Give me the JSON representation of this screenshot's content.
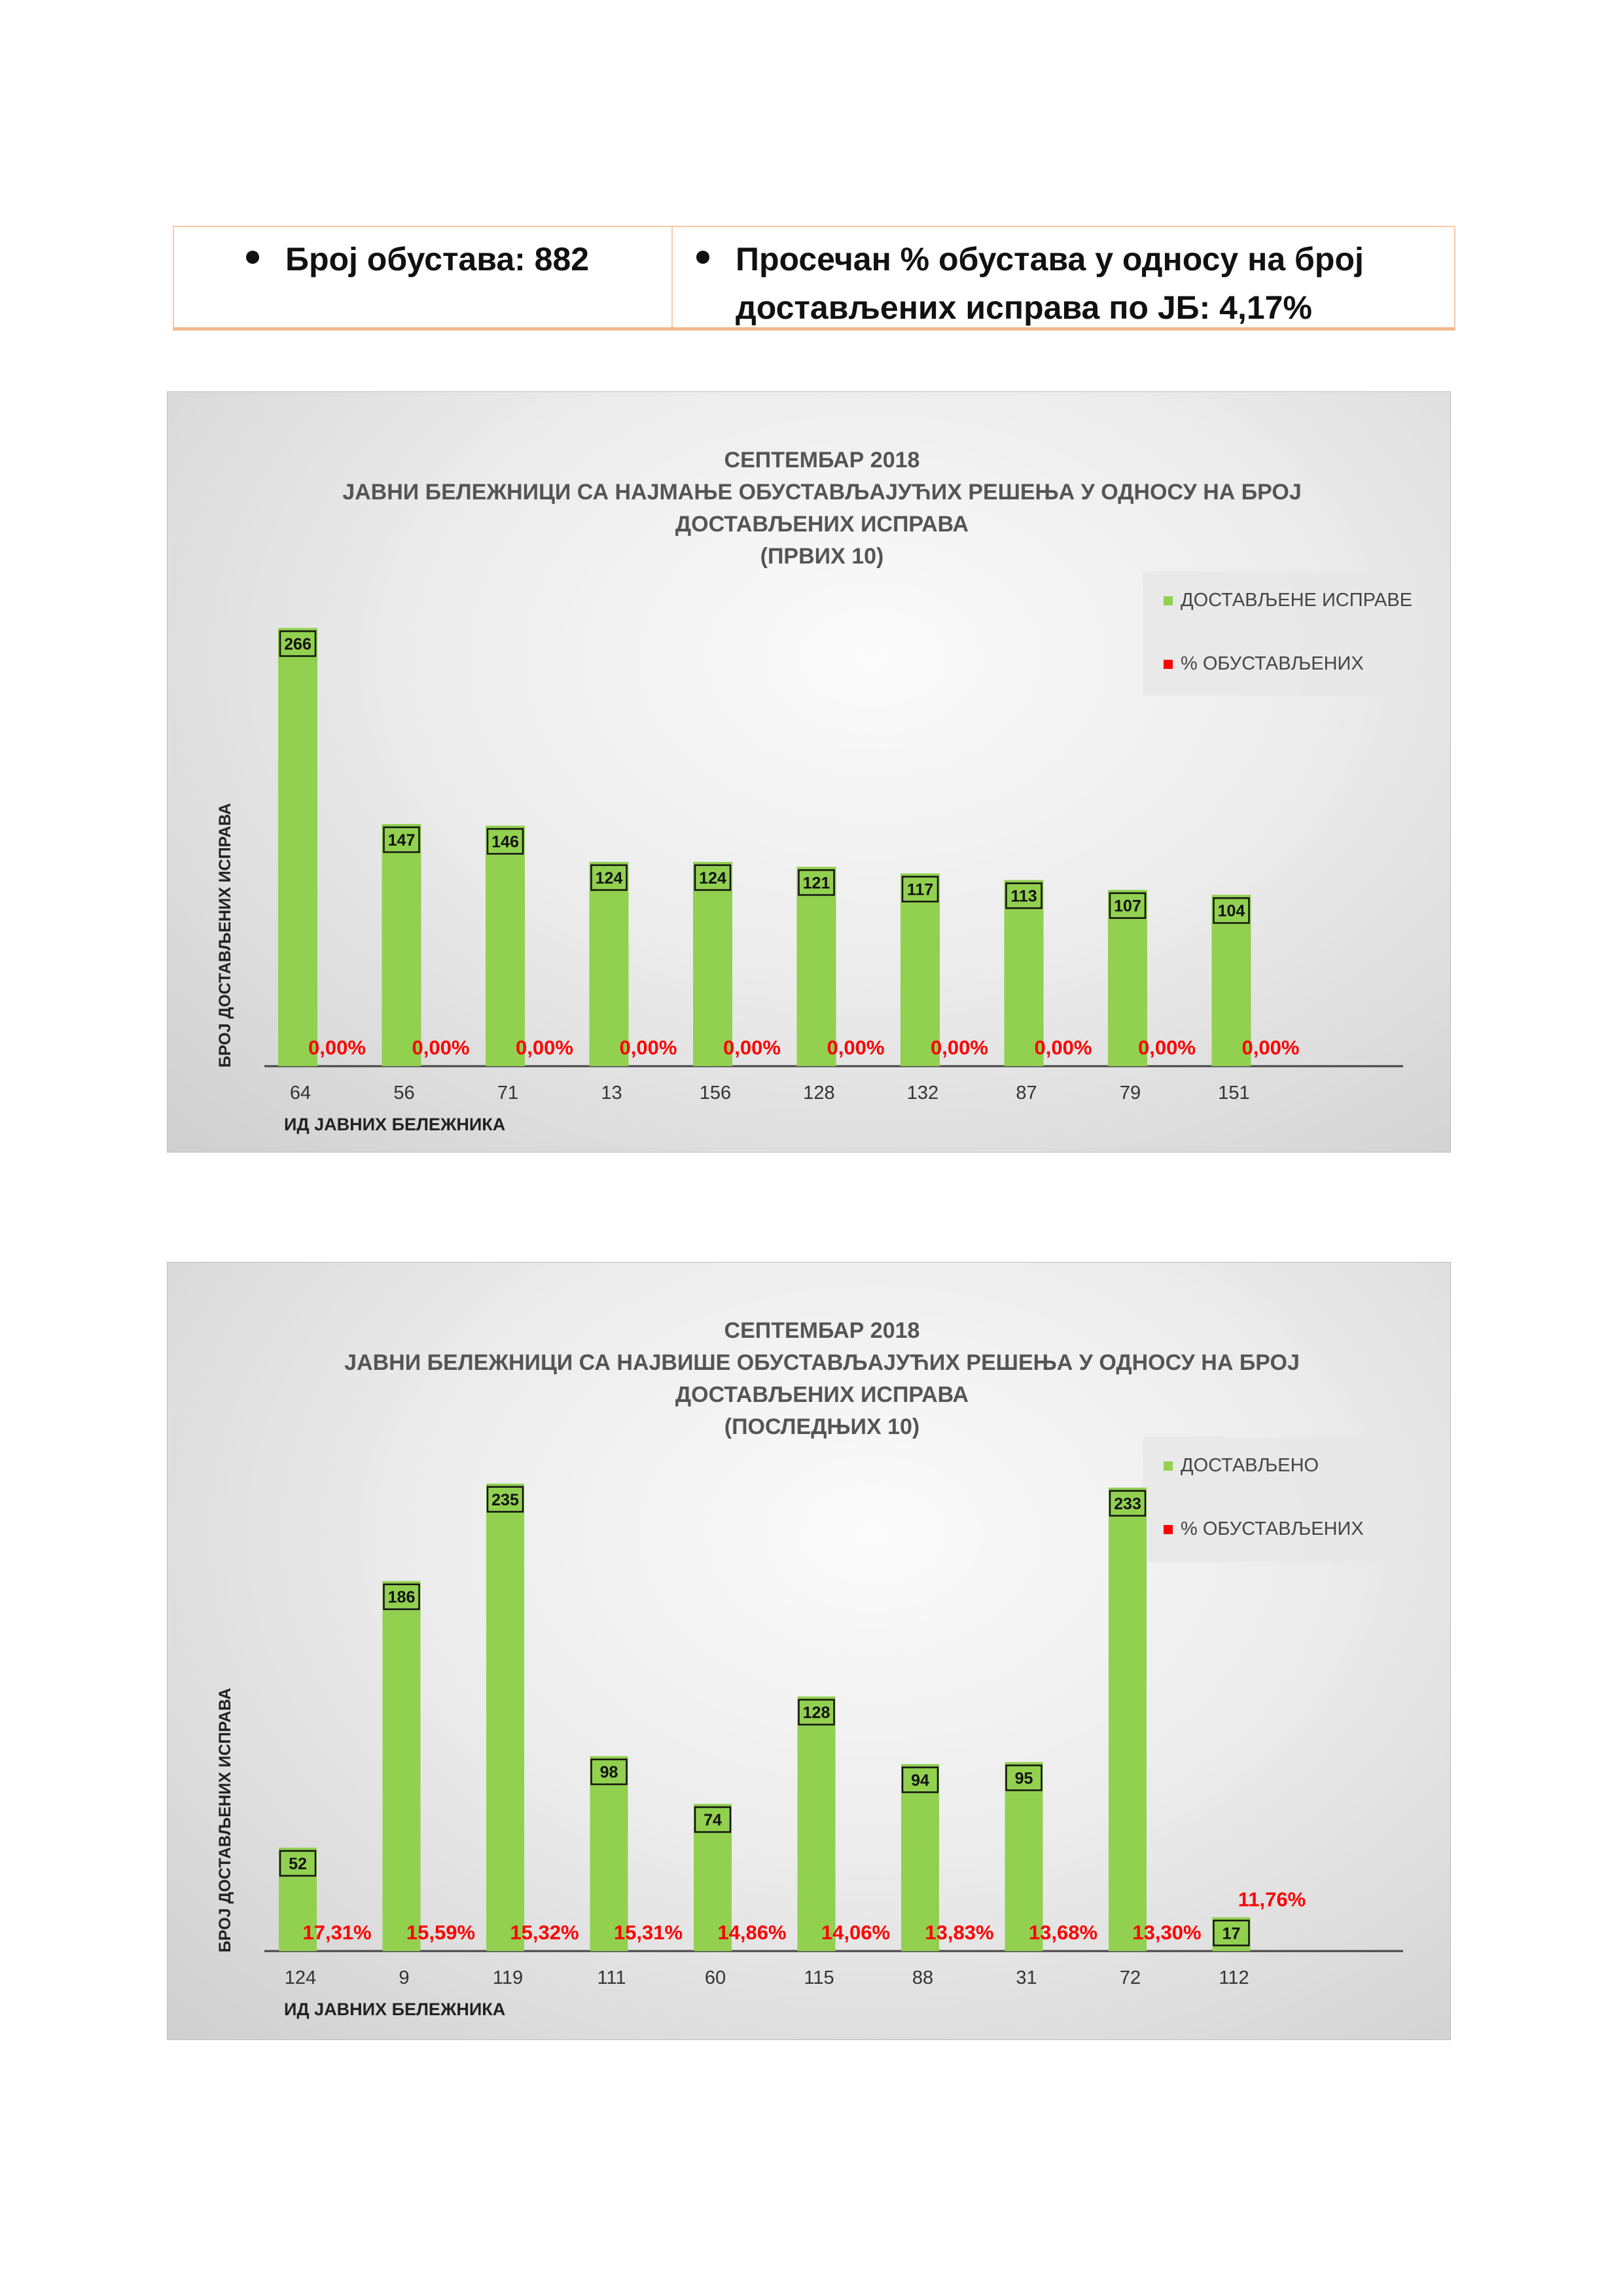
{
  "stats": {
    "left": "Број обустава: 882",
    "right_line1": "Просечан % обустава у односу на број",
    "right_line2": "достављених исправа по ЈБ: 4,17%"
  },
  "colors": {
    "bar": "#92d050",
    "percent": "#ff0000",
    "label_border": "#111111"
  },
  "chart_data": [
    {
      "type": "bar",
      "title": [
        "СЕПТЕМБАР 2018",
        "ЈАВНИ БЕЛЕЖНИЦИ СА НАЈМАЊЕ ОБУСТАВЉАЈУЋИХ РЕШЕЊА У ОДНОСУ НА БРОЈ",
        "ДОСТАВЉЕНИХ ИСПРАВА",
        "(ПРВИХ 10)"
      ],
      "xlabel": "ИД ЈАВНИХ БЕЛЕЖНИКА",
      "ylabel": "БРОЈ ДОСТАВЉЕНИХ ИСПРАВА",
      "ylim": [
        0,
        290
      ],
      "legend": {
        "position": "top-right",
        "series_label": "ДОСТАВЉЕНЕ ИСПРАВЕ",
        "percent_label": "% ОБУСТАВЉЕНИХ"
      },
      "categories": [
        "64",
        "56",
        "71",
        "13",
        "156",
        "128",
        "132",
        "87",
        "79",
        "151"
      ],
      "values": [
        266,
        147,
        146,
        124,
        124,
        121,
        117,
        113,
        107,
        104
      ],
      "percent_labels": [
        "0,00%",
        "0,00%",
        "0,00%",
        "0,00%",
        "0,00%",
        "0,00%",
        "0,00%",
        "0,00%",
        "0,00%",
        "0,00%"
      ]
    },
    {
      "type": "bar",
      "title": [
        "СЕПТЕМБАР 2018",
        "ЈАВНИ БЕЛЕЖНИЦИ СА НАЈВИШЕ ОБУСТАВЉАЈУЋИХ РЕШЕЊА У ОДНОСУ НА БРОЈ",
        "ДОСТАВЉЕНИХ ИСПРАВА",
        "(ПОСЛЕДЊИХ 10)"
      ],
      "xlabel": "ИД ЈАВНИХ БЕЛЕЖНИКА",
      "ylabel": "БРОЈ ДОСТАВЉЕНИХ ИСПРАВА",
      "ylim": [
        0,
        255
      ],
      "legend": {
        "position": "top-right",
        "series_label": "ДОСТАВЉЕНО",
        "percent_label": "% ОБУСТАВЉЕНИХ"
      },
      "categories": [
        "124",
        "9",
        "119",
        "111",
        "60",
        "115",
        "88",
        "31",
        "72",
        "112"
      ],
      "values": [
        52,
        186,
        235,
        98,
        74,
        128,
        94,
        95,
        233,
        17
      ],
      "percent_labels": [
        "17,31%",
        "15,59%",
        "15,32%",
        "15,31%",
        "14,86%",
        "14,06%",
        "13,83%",
        "13,68%",
        "13,30%",
        "11,76%"
      ]
    }
  ]
}
